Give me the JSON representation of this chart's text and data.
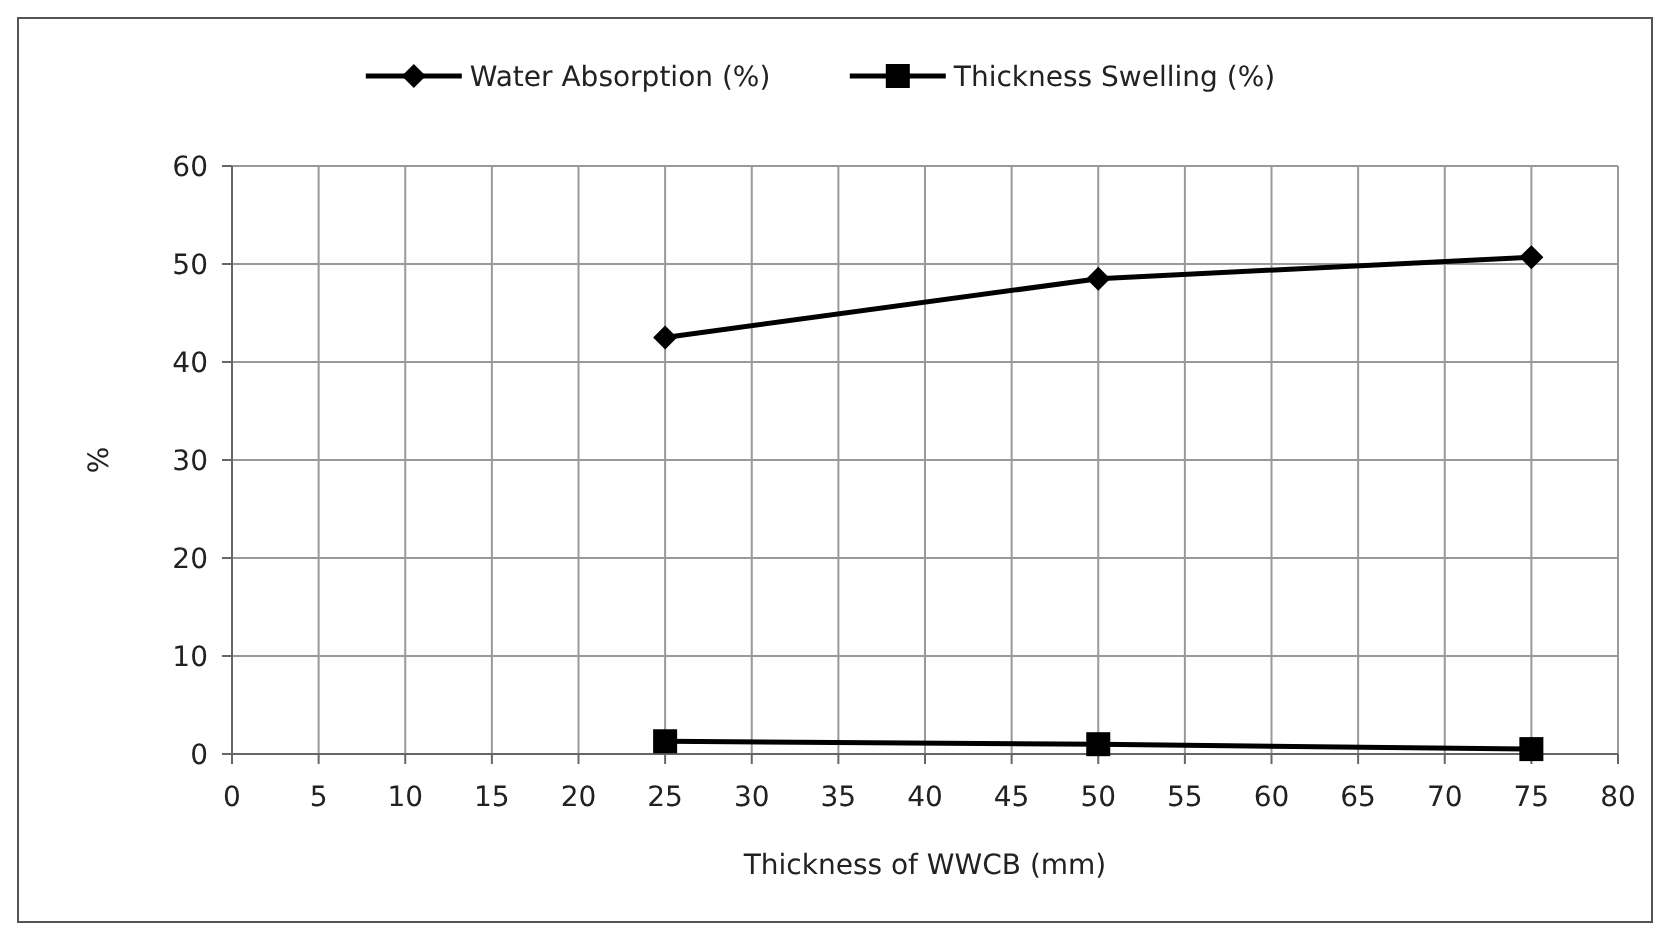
{
  "chart_data": {
    "type": "line",
    "xlabel": "Thickness of WWCB (mm)",
    "ylabel": "%",
    "x": [
      25,
      50,
      75
    ],
    "series": [
      {
        "name": "Water Absorption (%)",
        "color": "#000000",
        "marker": "diamond",
        "values": [
          42.5,
          48.5,
          50.7
        ]
      },
      {
        "name": "Thickness Swelling (%)",
        "color": "#000000",
        "marker": "square",
        "values": [
          1.3,
          1.0,
          0.5
        ]
      }
    ],
    "xlim": [
      0,
      80
    ],
    "xticks": [
      0,
      5,
      10,
      15,
      20,
      25,
      30,
      35,
      40,
      45,
      50,
      55,
      60,
      65,
      70,
      75,
      80
    ],
    "ylim": [
      0,
      60
    ],
    "yticks": [
      0,
      10,
      20,
      30,
      40,
      50,
      60
    ],
    "grid": true,
    "legend": "top",
    "line_style": "solid"
  }
}
